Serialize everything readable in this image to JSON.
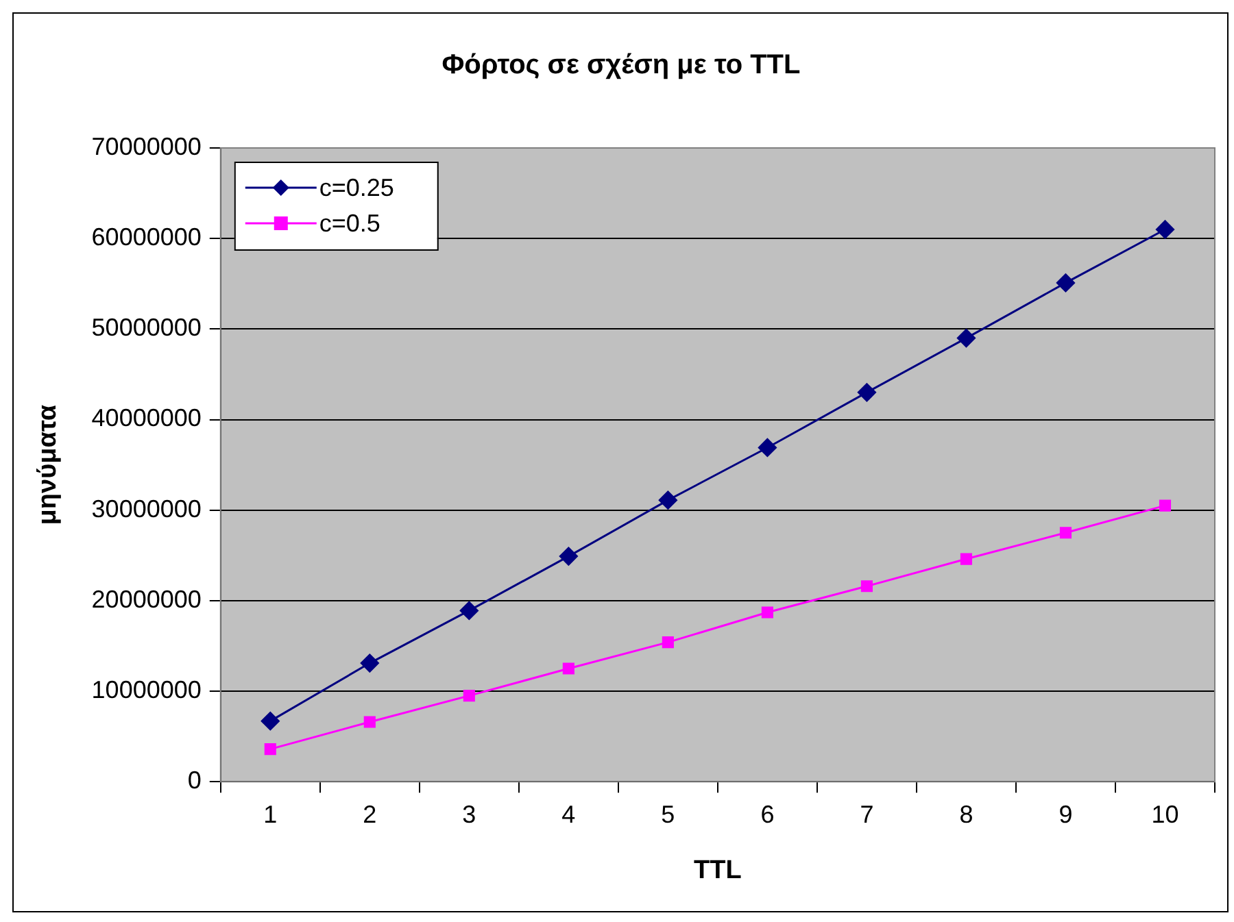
{
  "chart_data": {
    "type": "line",
    "title": "Φόρτος σε σχέση με το TTL",
    "xlabel": "TTL",
    "ylabel": "μηνύματα",
    "categories": [
      "1",
      "2",
      "3",
      "4",
      "5",
      "6",
      "7",
      "8",
      "9",
      "10"
    ],
    "series": [
      {
        "name": "c=0.25",
        "color": "#000080",
        "marker": "diamond",
        "values": [
          6700000,
          13100000,
          18900000,
          24900000,
          31100000,
          36900000,
          43000000,
          49000000,
          55100000,
          61000000
        ]
      },
      {
        "name": "c=0.5",
        "color": "#ff00ff",
        "marker": "square",
        "values": [
          3600000,
          6600000,
          9500000,
          12500000,
          15400000,
          18700000,
          21600000,
          24600000,
          27500000,
          30500000
        ]
      }
    ],
    "ylim": [
      0,
      70000000
    ],
    "yticks": [
      0,
      10000000,
      20000000,
      30000000,
      40000000,
      50000000,
      60000000,
      70000000
    ],
    "grid": "y",
    "legend": "top left"
  }
}
